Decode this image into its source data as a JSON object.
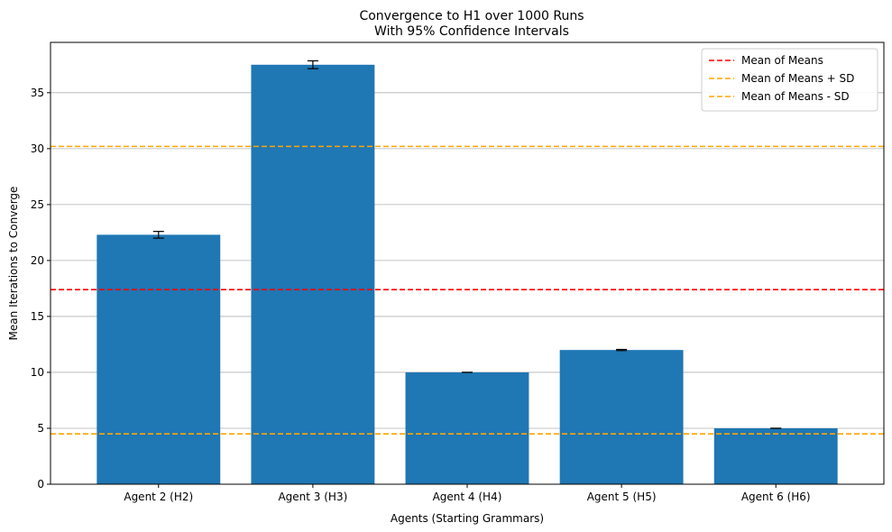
{
  "chart_data": {
    "type": "bar",
    "title_line1": "Convergence to H1 over 1000 Runs",
    "title_line2": "With 95% Confidence Intervals",
    "xlabel": "Agents (Starting Grammars)",
    "ylabel": "Mean Iterations to Converge",
    "categories": [
      "Agent 2 (H2)",
      "Agent 3 (H3)",
      "Agent 4 (H4)",
      "Agent 5 (H5)",
      "Agent 6 (H6)"
    ],
    "values": [
      22.3,
      37.5,
      10.0,
      12.0,
      5.0
    ],
    "ci_halfwidth": [
      0.3,
      0.35,
      0.0,
      0.05,
      0.0
    ],
    "ylim": [
      0,
      39.5
    ],
    "yticks": [
      0,
      5,
      10,
      15,
      20,
      25,
      30,
      35
    ],
    "bar_color": "#1f77b4",
    "grid": "y",
    "reference_lines": [
      {
        "label": "Mean of Means",
        "value": 17.4,
        "color": "#ff0000",
        "style": "dashed"
      },
      {
        "label": "Mean of Means + SD",
        "value": 30.2,
        "color": "#ffa500",
        "style": "dashed"
      },
      {
        "label": "Mean of Means - SD",
        "value": 4.5,
        "color": "#ffa500",
        "style": "dashed"
      }
    ],
    "legend_position": "top-right"
  }
}
